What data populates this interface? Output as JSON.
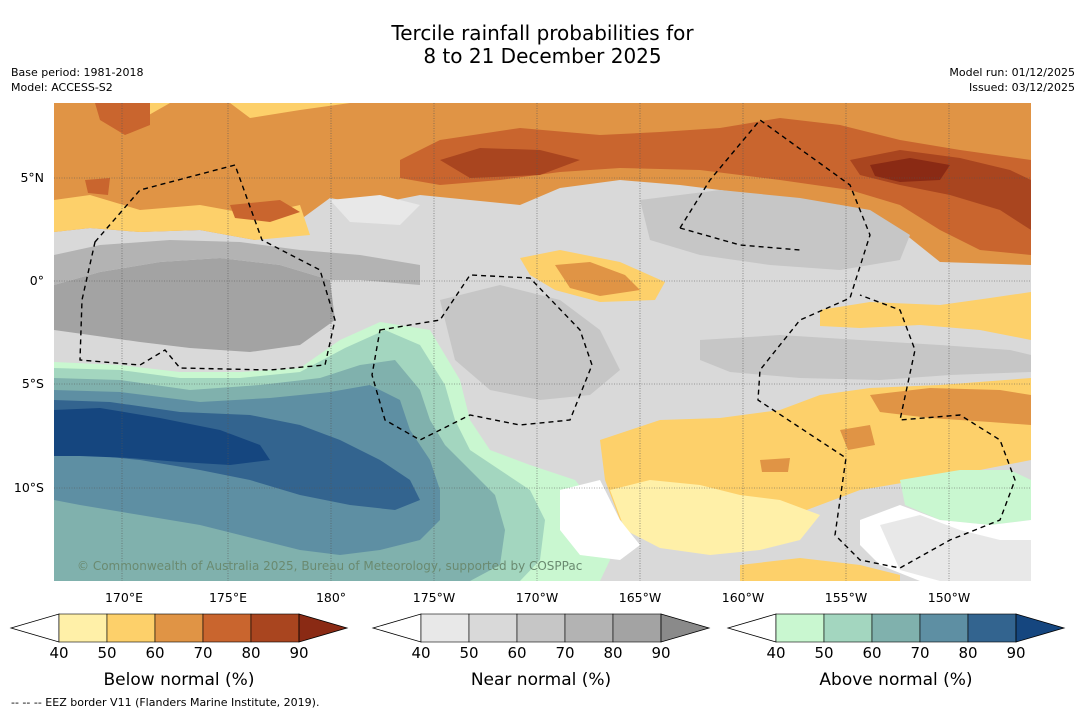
{
  "header": {
    "title_line1": "Tercile rainfall probabilities for",
    "title_line2": "8 to 21 December 2025",
    "base_period": "Base period: 1981-2018",
    "model": "Model: ACCESS-S2",
    "model_run": "Model run: 01/12/2025",
    "issued": "Issued: 03/12/2025"
  },
  "map": {
    "credit": "© Commonwealth of Australia 2025, Bureau of Meteorology, supported by COSPPac",
    "lat_labels": [
      "5°N",
      "0°",
      "5°S",
      "10°S"
    ],
    "lon_labels": [
      "170°E",
      "175°E",
      "180°",
      "175°W",
      "170°W",
      "165°W",
      "160°W",
      "155°W",
      "150°W"
    ]
  },
  "colorbars": [
    {
      "title": "Below normal (%)",
      "ticks": [
        "40",
        "50",
        "60",
        "70",
        "80",
        "90"
      ],
      "colors": [
        "#ffffff",
        "#fff0a8",
        "#fdd06a",
        "#e09445",
        "#c9652e",
        "#a9451f",
        "#8a2a14"
      ]
    },
    {
      "title": "Near normal (%)",
      "ticks": [
        "40",
        "50",
        "60",
        "70",
        "80",
        "90"
      ],
      "colors": [
        "#ffffff",
        "#e8e8e8",
        "#d9d9d9",
        "#c6c6c6",
        "#b3b3b3",
        "#a3a3a3",
        "#8a8a8a"
      ]
    },
    {
      "title": "Above normal (%)",
      "ticks": [
        "40",
        "50",
        "60",
        "70",
        "80",
        "90"
      ],
      "colors": [
        "#ffffff",
        "#c9f7d0",
        "#a3d6bf",
        "#80b1ad",
        "#5e8fa3",
        "#33648f",
        "#15467f"
      ]
    }
  ],
  "footer": {
    "eez_note": "--  --  -- EEZ border V11 (Flanders Marine Institute, 2019)."
  },
  "legend_colors": {
    "below": "#e09445",
    "near": "#c6c6c6",
    "above": "#5e8fa3"
  }
}
